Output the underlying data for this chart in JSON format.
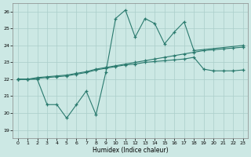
{
  "xlabel": "Humidex (Indice chaleur)",
  "bg_color": "#cce8e4",
  "grid_color": "#aaceca",
  "line_color": "#2a7a6e",
  "xlim": [
    -0.5,
    23.5
  ],
  "ylim": [
    18.5,
    26.5
  ],
  "yticks": [
    19,
    20,
    21,
    22,
    23,
    24,
    25,
    26
  ],
  "xticks": [
    0,
    1,
    2,
    3,
    4,
    5,
    6,
    7,
    8,
    9,
    10,
    11,
    12,
    13,
    14,
    15,
    16,
    17,
    18,
    19,
    20,
    21,
    22,
    23
  ],
  "line1_y": [
    22.0,
    22.0,
    22.0,
    20.5,
    20.5,
    19.7,
    20.5,
    21.3,
    19.9,
    22.4,
    25.6,
    26.1,
    24.5,
    25.6,
    25.3,
    24.1,
    24.8,
    25.4,
    23.7,
    null,
    null,
    null,
    null,
    24.0
  ],
  "line2_y": [
    22.0,
    22.0,
    22.05,
    22.1,
    22.15,
    22.2,
    22.3,
    22.4,
    22.55,
    22.65,
    22.75,
    22.85,
    22.9,
    23.0,
    23.05,
    23.1,
    23.15,
    23.2,
    23.3,
    22.6,
    22.5,
    22.5,
    22.5,
    22.55
  ],
  "line3_y": [
    22.0,
    22.0,
    22.1,
    22.15,
    22.2,
    22.25,
    22.35,
    22.45,
    22.6,
    22.7,
    22.8,
    22.9,
    23.0,
    23.1,
    23.2,
    23.3,
    23.4,
    23.5,
    23.6,
    23.7,
    23.75,
    23.8,
    23.85,
    23.9
  ]
}
